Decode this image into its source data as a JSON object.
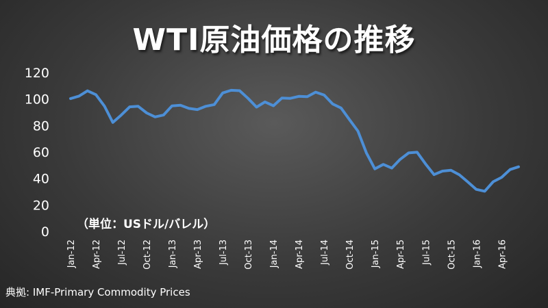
{
  "title": "WTI原油価格の推移",
  "unit_note": "（単位：USドル/バレル）",
  "source": "典拠: IMF-Primary Commodity Prices",
  "colors": {
    "line": "#4d8fd6",
    "background": "#3a3a3a",
    "text": "#ffffff"
  },
  "chart_data": {
    "type": "line",
    "title": "WTI原油価格の推移",
    "ylim": [
      0,
      120
    ],
    "yticks": [
      0,
      20,
      40,
      60,
      80,
      100,
      120
    ],
    "grid": false,
    "x": [
      "Jan-12",
      "Feb-12",
      "Mar-12",
      "Apr-12",
      "May-12",
      "Jun-12",
      "Jul-12",
      "Aug-12",
      "Sep-12",
      "Oct-12",
      "Nov-12",
      "Dec-12",
      "Jan-13",
      "Feb-13",
      "Mar-13",
      "Apr-13",
      "May-13",
      "Jun-13",
      "Jul-13",
      "Aug-13",
      "Sep-13",
      "Oct-13",
      "Nov-13",
      "Dec-13",
      "Jan-14",
      "Feb-14",
      "Mar-14",
      "Apr-14",
      "May-14",
      "Jun-14",
      "Jul-14",
      "Aug-14",
      "Sep-14",
      "Oct-14",
      "Nov-14",
      "Dec-14",
      "Jan-15",
      "Feb-15",
      "Mar-15",
      "Apr-15",
      "May-15",
      "Jun-15",
      "Jul-15",
      "Aug-15",
      "Sep-15",
      "Oct-15",
      "Nov-15",
      "Dec-15",
      "Jan-16",
      "Feb-16",
      "Mar-16",
      "Apr-16",
      "May-16",
      "Jun-16"
    ],
    "xtick_labels": [
      "Jan-12",
      "Apr-12",
      "Jul-12",
      "Oct-12",
      "Jan-13",
      "Apr-13",
      "Jul-13",
      "Oct-13",
      "Jan-14",
      "Apr-14",
      "Jul-14",
      "Oct-14",
      "Jan-15",
      "Apr-15",
      "Jul-15",
      "Oct-15",
      "Jan-16",
      "Apr-16"
    ],
    "series": [
      {
        "values": [
          100.3,
          102.2,
          106.2,
          103.3,
          94.7,
          82.3,
          87.9,
          94.1,
          94.5,
          89.5,
          86.5,
          87.9,
          94.8,
          95.3,
          92.9,
          92.0,
          94.5,
          95.8,
          104.6,
          106.6,
          106.3,
          100.5,
          93.9,
          97.8,
          94.9,
          100.7,
          100.5,
          102.0,
          101.8,
          105.2,
          103.0,
          96.3,
          93.2,
          84.4,
          75.8,
          59.3,
          47.2,
          50.6,
          47.8,
          54.4,
          59.3,
          59.8,
          50.9,
          42.9,
          45.5,
          46.2,
          42.7,
          37.3,
          31.7,
          30.3,
          37.5,
          40.8,
          46.7,
          48.8
        ]
      }
    ]
  }
}
